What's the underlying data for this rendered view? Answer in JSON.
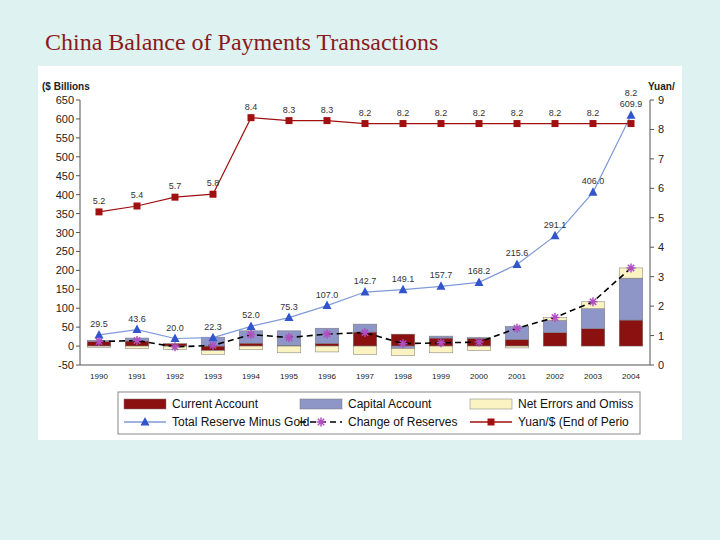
{
  "chart_data": {
    "type": "bar",
    "title": "China Balance of Payments Transactions",
    "y_label": "($ Billions",
    "y2_label": "Yuan/",
    "categories": [
      "1990",
      "1991",
      "1992",
      "1993",
      "1994",
      "1995",
      "1996",
      "1997",
      "1998",
      "1999",
      "2000",
      "2001",
      "2002",
      "2003",
      "2004"
    ],
    "stacked": true,
    "grid": false,
    "legend": "bottom",
    "ylim": [
      -50,
      650
    ],
    "yticks": [
      -50,
      0,
      50,
      100,
      150,
      200,
      250,
      300,
      350,
      400,
      450,
      500,
      550,
      600,
      650
    ],
    "y2lim": [
      0,
      9
    ],
    "y2ticks": [
      0,
      1,
      2,
      3,
      4,
      5,
      6,
      7,
      8,
      9
    ],
    "series": [
      {
        "name": "Current Account",
        "type": "bar",
        "color": "#8b1010",
        "values": [
          12.0,
          13.3,
          6.4,
          -11.9,
          7.7,
          1.6,
          7.2,
          37.0,
          31.5,
          21.1,
          20.5,
          17.4,
          35.4,
          45.9,
          68.7
        ]
      },
      {
        "name": "Capital Account",
        "type": "bar",
        "color": "#8e96c8",
        "values": [
          3.3,
          8.0,
          -0.3,
          23.5,
          32.6,
          38.7,
          40.0,
          21.0,
          -6.3,
          5.2,
          2.0,
          34.8,
          32.3,
          52.7,
          110.7
        ]
      },
      {
        "name": "Net Errors and Omiss",
        "type": "bar",
        "color": "#fbf3c2",
        "values": [
          -3.1,
          -6.8,
          -8.2,
          -9.8,
          -9.8,
          -17.8,
          -15.5,
          -22.1,
          -18.9,
          -17.8,
          -11.9,
          -4.9,
          7.8,
          18.4,
          27.0
        ]
      },
      {
        "name": "Total Reserve Minus Gold",
        "type": "line",
        "color": "#3355cc",
        "marker": "triangle",
        "data_labels": true,
        "values": [
          29.5,
          43.6,
          20.0,
          22.3,
          52.0,
          75.3,
          107.0,
          142.7,
          149.1,
          157.7,
          168.2,
          215.6,
          291.1,
          406.0,
          609.9
        ],
        "value_labels": [
          "29.5",
          "43.6",
          "20.0",
          "22.3",
          "52.0",
          "75.3",
          "107.0",
          "142.7",
          "149.1",
          "157.7",
          "168.2",
          "215.6",
          "291.1",
          "406.0",
          "609.9"
        ]
      },
      {
        "name": "Change of Reserves",
        "type": "line",
        "color": "#000000",
        "marker": "star",
        "line_style": "dashed",
        "values": [
          12.1,
          14.5,
          -2.1,
          1.8,
          30.5,
          22.5,
          31.7,
          35.7,
          6.4,
          8.5,
          10.5,
          47.3,
          75.5,
          117.0,
          206.4
        ]
      },
      {
        "name": "Yuan/$ (End of Perio",
        "type": "line",
        "color": "#a01010",
        "marker": "square",
        "axis": "y2",
        "data_labels": true,
        "values": [
          5.2,
          5.4,
          5.7,
          5.8,
          8.4,
          8.3,
          8.3,
          8.2,
          8.2,
          8.2,
          8.2,
          8.2,
          8.2,
          8.2,
          8.2
        ]
      }
    ]
  }
}
